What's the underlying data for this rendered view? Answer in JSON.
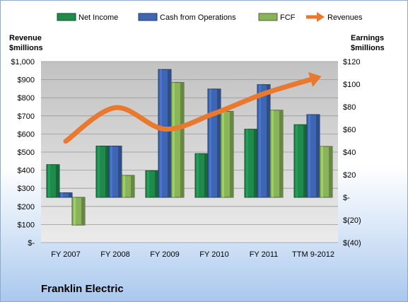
{
  "chart_data": {
    "type": "bar",
    "categories": [
      "FY 2007",
      "FY 2008",
      "FY 2009",
      "FY 2010",
      "FY 2011",
      "TTM 9-2012"
    ],
    "series": [
      {
        "name": "Net Income",
        "axis": "right",
        "kind": "bar",
        "color": "#1f8a4c",
        "values": [
          28.9,
          45.3,
          23.5,
          38.6,
          60.2,
          64.2
        ]
      },
      {
        "name": "Cash from Operations",
        "axis": "right",
        "kind": "bar",
        "color": "#3f66b3",
        "values": [
          4,
          45.3,
          113,
          95.7,
          99.6,
          73.1
        ]
      },
      {
        "name": "FCF",
        "axis": "right",
        "kind": "bar",
        "color": "#8ab45a",
        "values": [
          -24.5,
          19.4,
          101.5,
          76,
          77,
          45
        ]
      },
      {
        "name": "Revenues",
        "axis": "left",
        "kind": "line",
        "color": "#e8792e",
        "values": [
          560,
          745,
          627,
          713,
          822,
          905
        ]
      }
    ],
    "yleft": {
      "label_line1": "Revenue",
      "label_line2": "$millions",
      "ylim": [
        0,
        1000
      ],
      "ticks": [
        "$-",
        "$100",
        "$200",
        "$300",
        "$400",
        "$500",
        "$600",
        "$700",
        "$800",
        "$900",
        "$1,000"
      ]
    },
    "yright": {
      "label_line1": "Earnings",
      "label_line2": "$millions",
      "ylim": [
        -40,
        120
      ],
      "ticks": [
        "$(40)",
        "$(20)",
        "$-",
        "$20",
        "$40",
        "$60",
        "$80",
        "$100",
        "$120"
      ]
    },
    "legend_position": "top",
    "grid": true
  },
  "company": "Franklin Electric"
}
